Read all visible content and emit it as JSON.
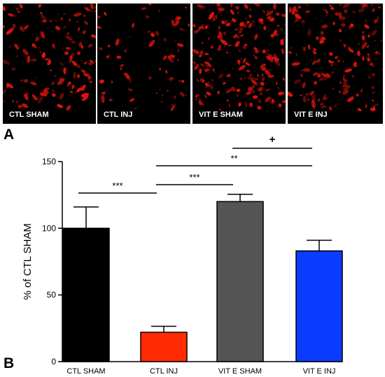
{
  "panel_a": {
    "letter": "A",
    "images": [
      {
        "label": "CTL SHAM"
      },
      {
        "label": "CTL INJ"
      },
      {
        "label": "VIT E SHAM"
      },
      {
        "label": "VIT E INJ"
      }
    ],
    "stain_color": "#e0140c"
  },
  "panel_b": {
    "letter": "B"
  },
  "chart_data": {
    "type": "bar",
    "categories": [
      "CTL SHAM",
      "CTL INJ",
      "VIT E SHAM",
      "VIT E INJ"
    ],
    "values": [
      100,
      22,
      120,
      83
    ],
    "errors": [
      16,
      4.5,
      5.5,
      8
    ],
    "colors": [
      "#000000",
      "#ff2a00",
      "#555555",
      "#0a3cff"
    ],
    "ylabel": "% of CTL SHAM",
    "ylim": [
      0,
      150
    ],
    "yticks": [
      0,
      50,
      100,
      150
    ],
    "significance": [
      {
        "from": 0,
        "to": 1,
        "label": "***"
      },
      {
        "from": 1,
        "to": 2,
        "label": "***"
      },
      {
        "from": 1,
        "to": 3,
        "label": "**"
      },
      {
        "from": 2,
        "to": 3,
        "label": "+"
      }
    ]
  }
}
